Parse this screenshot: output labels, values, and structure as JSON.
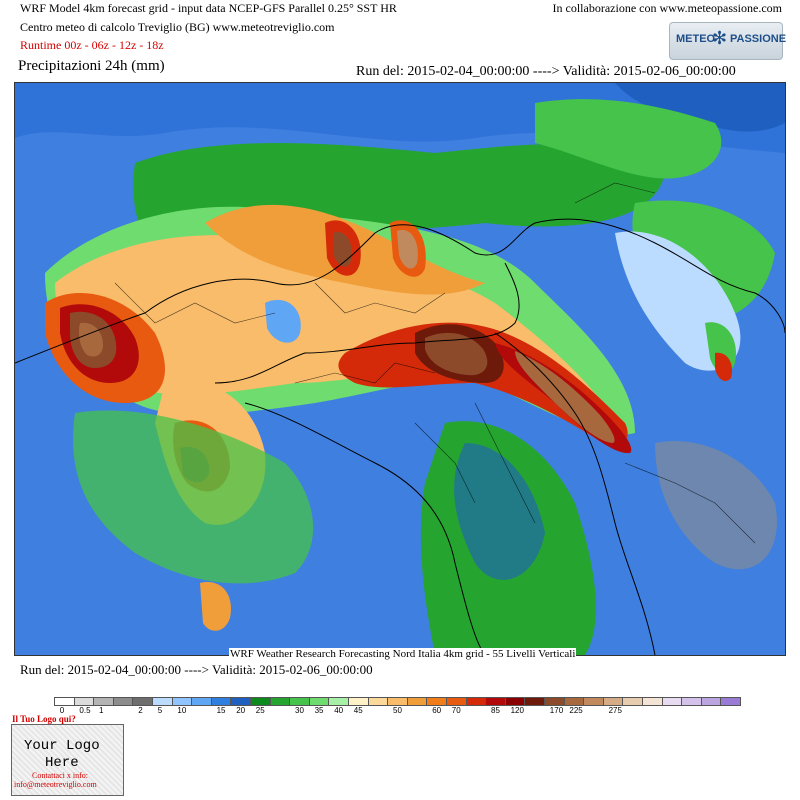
{
  "header": {
    "line1": "WRF Model 4km forecast grid - input data NCEP-GFS Parallel 0.25° SST HR",
    "line2": "Centro meteo di calcolo Treviglio (BG) www.meteotreviglio.com",
    "line3": "Runtime 00z - 06z - 12z - 18z",
    "collaboration": "In collaborazione con www.meteopassione.com"
  },
  "logo": {
    "word1": "METEO",
    "word2": "PASSIONE"
  },
  "title": "Precipitazioni 24h (mm)",
  "run_top": "Run del: 2015-02-04_00:00:00 ----> Validità: 2015-02-06_00:00:00",
  "footer": {
    "wrf_caption": "WRF Weather Research Forecasting Nord Italia 4km grid - 55 Livelli Verticali",
    "run_bottom": "Run del: 2015-02-04_00:00:00 ----> Validità: 2015-02-06_00:00:00"
  },
  "legend": {
    "ticks": [
      "0",
      "0.5",
      "1",
      "2",
      "5",
      "10",
      "15",
      "20",
      "25",
      "30",
      "35",
      "40",
      "45",
      "50",
      "60",
      "70",
      "85",
      "120",
      "170",
      "225",
      "275"
    ],
    "colors": [
      "#ffffff",
      "#dcdcdc",
      "#b4b4b4",
      "#8c8c8c",
      "#6e6e6e",
      "#bcdcff",
      "#90c4ff",
      "#5fa6f5",
      "#2f7fe0",
      "#1f5fc0",
      "#0c8a1e",
      "#25a530",
      "#45c34a",
      "#6fdc6f",
      "#a8f0a8",
      "#fff2c8",
      "#fcd99a",
      "#f8bc6a",
      "#f09e3a",
      "#f07d1a",
      "#e85a10",
      "#d42a0a",
      "#b20a0a",
      "#8a0000",
      "#6e1a0a",
      "#8c4a2a",
      "#a8683e",
      "#c08a5e",
      "#d6ac86",
      "#e8ccb0",
      "#f4e4d6",
      "#e8dcf2",
      "#d4c2ea",
      "#bba6e2",
      "#9a7cd6"
    ]
  },
  "your_logo": {
    "question": "Il Tuo Logo qui?",
    "text_line1": "Your Logo",
    "text_line2": "Here",
    "contact": "Contattaci x info:",
    "email": "info@meteotreviglio.com"
  }
}
